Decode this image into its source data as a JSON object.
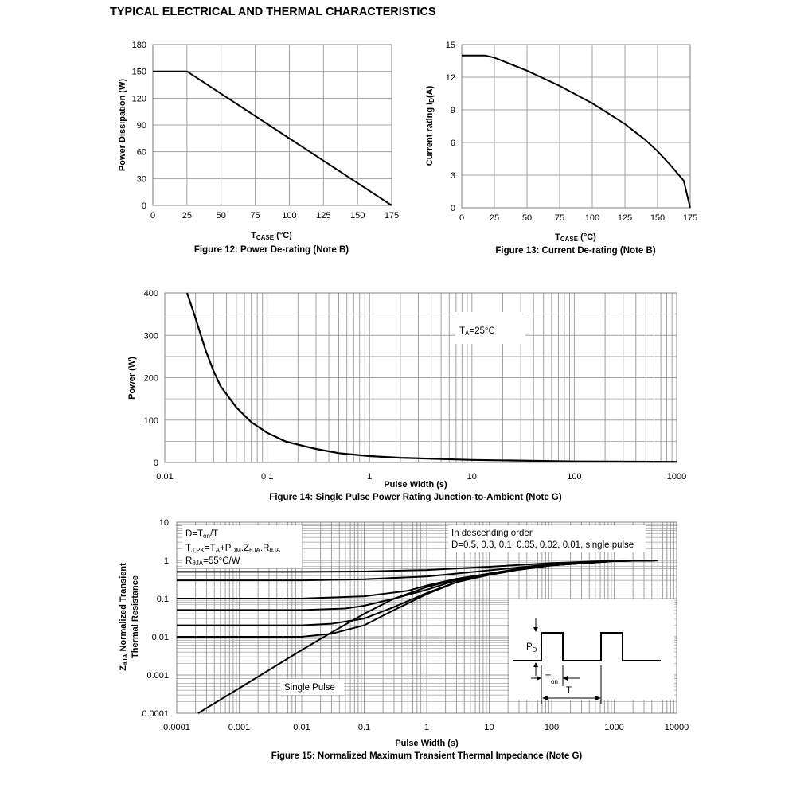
{
  "page": {
    "title": "TYPICAL ELECTRICAL AND THERMAL CHARACTERISTICS"
  },
  "chart_data": [
    {
      "id": "fig12",
      "type": "line",
      "caption": "Figure 12: Power De-rating (Note B)",
      "xlabel_main": "T",
      "xlabel_sub": "CASE",
      "xlabel_tail": " (°C)",
      "ylabel": "Power Dissipation (W)",
      "xlim": [
        0,
        175
      ],
      "ylim": [
        0,
        180
      ],
      "xticks": [
        0,
        25,
        50,
        75,
        100,
        125,
        150,
        175
      ],
      "yticks": [
        0,
        30,
        60,
        90,
        120,
        150,
        180
      ],
      "grid": true,
      "series": [
        {
          "x": [
            0,
            25,
            175
          ],
          "y": [
            150,
            150,
            0
          ]
        }
      ]
    },
    {
      "id": "fig13",
      "type": "line",
      "caption": "Figure 13: Current De-rating (Note B)",
      "xlabel_main": "T",
      "xlabel_sub": "CASE",
      "xlabel_tail": " (°C)",
      "ylabel_main": "Current rating I",
      "ylabel_sub": "D",
      "ylabel_tail": "(A)",
      "xlim": [
        0,
        175
      ],
      "ylim": [
        0,
        15
      ],
      "xticks": [
        0,
        25,
        50,
        75,
        100,
        125,
        150,
        175
      ],
      "yticks": [
        0,
        3,
        6,
        9,
        12,
        15
      ],
      "grid": true,
      "series": [
        {
          "x": [
            0,
            18,
            25,
            50,
            75,
            100,
            125,
            140,
            150,
            160,
            165,
            170,
            175
          ],
          "y": [
            14,
            14,
            13.8,
            12.6,
            11.2,
            9.6,
            7.7,
            6.3,
            5.2,
            3.9,
            3.2,
            2.5,
            0
          ]
        }
      ]
    },
    {
      "id": "fig14",
      "type": "line",
      "caption": "Figure 14: Single Pulse Power Rating Junction-to-Ambient (Note G)",
      "xlabel": "Pulse Width (s)",
      "ylabel": "Power (W)",
      "xscale": "log",
      "xlim": [
        0.01,
        1000
      ],
      "ylim": [
        0,
        400
      ],
      "xticks": [
        0.01,
        0.1,
        1,
        10,
        100,
        1000
      ],
      "xtick_labels": [
        "0.01",
        "0.1",
        "1",
        "10",
        "100",
        "1000"
      ],
      "yticks": [
        0,
        100,
        200,
        300,
        400
      ],
      "grid": true,
      "annotation_main": "T",
      "annotation_sub": "A",
      "annotation_tail": "=25°C",
      "series": [
        {
          "x": [
            0.0165,
            0.02,
            0.025,
            0.03,
            0.035,
            0.05,
            0.07,
            0.1,
            0.15,
            0.2,
            0.3,
            0.5,
            1,
            2,
            5,
            10,
            50,
            100,
            1000
          ],
          "y": [
            400,
            340,
            265,
            215,
            180,
            130,
            95,
            70,
            50,
            42,
            32,
            22,
            15,
            11,
            8,
            6,
            3.5,
            2.5,
            1.5
          ]
        }
      ]
    },
    {
      "id": "fig15",
      "type": "line",
      "caption": "Figure 15: Normalized Maximum Transient Thermal Impedance (Note G)",
      "xlabel": "Pulse Width (s)",
      "ylabel_line1_main": "Z",
      "ylabel_line1_sub": "θJA",
      "ylabel_line1_tail": " Normalized Transient",
      "ylabel_line2": "Thermal Resistance",
      "xscale": "log",
      "yscale": "log",
      "xlim": [
        0.0001,
        10000
      ],
      "ylim": [
        0.0001,
        10
      ],
      "xticks": [
        0.0001,
        0.001,
        0.01,
        0.1,
        1,
        10,
        100,
        1000,
        10000
      ],
      "xtick_labels": [
        "0.0001",
        "0.001",
        "0.01",
        "0.1",
        "1",
        "10",
        "100",
        "1000",
        "10000"
      ],
      "yticks": [
        0.0001,
        0.001,
        0.01,
        0.1,
        1,
        10
      ],
      "ytick_labels": [
        "0.0001",
        "0.001",
        "0.01",
        "0.1",
        "1",
        "10"
      ],
      "grid": true,
      "legend_left": {
        "l1_main": "D=T",
        "l1_sub": "on",
        "l1_tail": "/T",
        "l2_a": "T",
        "l2_a_sub": "J,PK",
        "l2_b": "=T",
        "l2_b_sub": "A",
        "l2_c": "+P",
        "l2_c_sub": "DM",
        "l2_d": ".Z",
        "l2_d_sub": "θJA",
        "l2_e": ".R",
        "l2_e_sub": "θJA",
        "l3_main": "R",
        "l3_sub": "θJA",
        "l3_tail": "=55°C/W"
      },
      "legend_right": {
        "line1": "In descending order",
        "line2": "D=0.5, 0.3, 0.1, 0.05, 0.02, 0.01, single pulse"
      },
      "single_pulse_label": "Single Pulse",
      "inset": {
        "pd_main": "P",
        "pd_sub": "D",
        "ton_main": "T",
        "ton_sub": "on",
        "t_label": "T"
      },
      "series": [
        {
          "duty": 0.5,
          "x": [
            0.0001,
            0.01,
            0.1,
            1,
            10,
            100,
            1000,
            5000
          ],
          "y": [
            0.5,
            0.5,
            0.51,
            0.56,
            0.68,
            0.85,
            0.98,
            1.0
          ]
        },
        {
          "duty": 0.3,
          "x": [
            0.0001,
            0.01,
            0.1,
            1,
            10,
            100,
            1000,
            5000
          ],
          "y": [
            0.3,
            0.3,
            0.32,
            0.38,
            0.55,
            0.8,
            0.97,
            1.0
          ]
        },
        {
          "duty": 0.1,
          "x": [
            0.0001,
            0.01,
            0.1,
            0.5,
            1,
            3,
            10,
            30,
            100,
            1000,
            5000
          ],
          "y": [
            0.1,
            0.1,
            0.115,
            0.16,
            0.22,
            0.33,
            0.45,
            0.6,
            0.75,
            0.96,
            1.0
          ]
        },
        {
          "duty": 0.05,
          "x": [
            0.0001,
            0.01,
            0.05,
            0.1,
            0.3,
            1,
            3,
            10,
            30,
            100,
            1000,
            5000
          ],
          "y": [
            0.05,
            0.05,
            0.055,
            0.065,
            0.1,
            0.17,
            0.3,
            0.43,
            0.58,
            0.74,
            0.96,
            1.0
          ]
        },
        {
          "duty": 0.02,
          "x": [
            0.0001,
            0.01,
            0.03,
            0.1,
            0.3,
            1,
            3,
            10,
            30,
            100,
            1000,
            5000
          ],
          "y": [
            0.02,
            0.02,
            0.022,
            0.03,
            0.06,
            0.14,
            0.27,
            0.42,
            0.57,
            0.74,
            0.96,
            1.0
          ]
        },
        {
          "duty": 0.01,
          "x": [
            0.0001,
            0.01,
            0.03,
            0.1,
            0.3,
            1,
            3,
            10,
            30,
            100,
            1000,
            5000
          ],
          "y": [
            0.01,
            0.01,
            0.012,
            0.02,
            0.05,
            0.13,
            0.27,
            0.42,
            0.57,
            0.74,
            0.96,
            1.0
          ]
        },
        {
          "duty": "single pulse",
          "x": [
            0.00022,
            0.001,
            0.01,
            0.03,
            0.1,
            0.3,
            1,
            3,
            10,
            30,
            100,
            1000,
            5000
          ],
          "y": [
            0.0001,
            0.00045,
            0.0045,
            0.013,
            0.04,
            0.1,
            0.2,
            0.32,
            0.45,
            0.6,
            0.75,
            0.96,
            1.0
          ]
        }
      ]
    }
  ]
}
